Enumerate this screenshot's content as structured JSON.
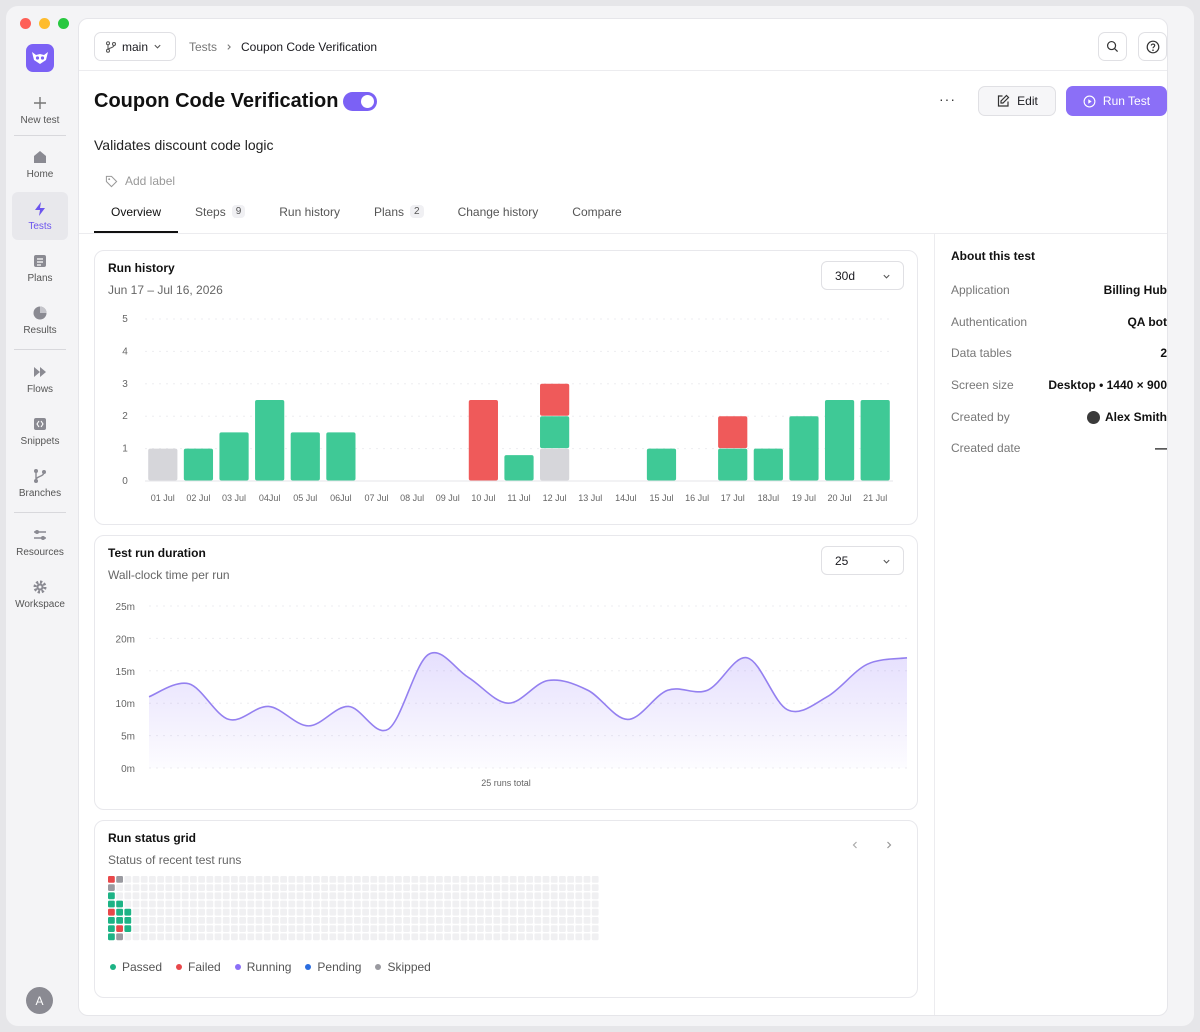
{
  "app": {
    "user_initial": "A"
  },
  "sidebar": {
    "new_test": "New test",
    "items": [
      {
        "label": "Home",
        "icon": "home-icon"
      },
      {
        "label": "Tests",
        "icon": "bolt-icon",
        "active": true
      },
      {
        "label": "Plans",
        "icon": "plans-icon"
      },
      {
        "label": "Results",
        "icon": "results-icon"
      },
      {
        "label": "Flows",
        "icon": "flows-icon"
      },
      {
        "label": "Snippets",
        "icon": "snippets-icon"
      },
      {
        "label": "Branches",
        "icon": "branch-icon"
      },
      {
        "label": "Resources",
        "icon": "resources-icon"
      },
      {
        "label": "Workspace",
        "icon": "gear-icon"
      }
    ]
  },
  "topbar": {
    "branch": "main",
    "crumb_parent": "Tests",
    "crumb_current": "Coupon Code Verification"
  },
  "test": {
    "title": "Coupon Code Verification",
    "enabled": true,
    "description": "Validates discount code logic",
    "add_label": "Add label",
    "more": "···",
    "edit": "Edit",
    "run": "Run Test"
  },
  "tabs": [
    {
      "label": "Overview",
      "count": ""
    },
    {
      "label": "Steps",
      "count": "9"
    },
    {
      "label": "Run history",
      "count": ""
    },
    {
      "label": "Plans",
      "count": "2"
    },
    {
      "label": "Change history",
      "count": ""
    },
    {
      "label": "Compare",
      "count": ""
    }
  ],
  "run_history": {
    "title": "Run history",
    "range": "Jun 17 – Jul 16, 2026",
    "period": "30d"
  },
  "duration": {
    "title": "Test run duration",
    "subtitle": "Wall-clock time per run",
    "count": "25",
    "footer": "25 runs total"
  },
  "grid": {
    "title": "Run status grid",
    "subtitle": "Status of recent test runs"
  },
  "legend": [
    {
      "label": "Passed",
      "color": "#1db385"
    },
    {
      "label": "Failed",
      "color": "#e8474a"
    },
    {
      "label": "Running",
      "color": "#8b6ff7"
    },
    {
      "label": "Pending",
      "color": "#2b6de0"
    },
    {
      "label": "Skipped",
      "color": "#9a9aa0"
    }
  ],
  "about": {
    "title": "About this test",
    "rows": [
      {
        "k": "Application",
        "v": "Billing Hub"
      },
      {
        "k": "Authentication",
        "v": "QA bot"
      },
      {
        "k": "Data tables",
        "v": "2"
      },
      {
        "k": "Screen size",
        "v": "Desktop • 1440 × 900"
      },
      {
        "k": "Created by",
        "v": "Alex Smith"
      },
      {
        "k": "Created date",
        "v": "—"
      }
    ]
  },
  "chart_data": [
    {
      "type": "bar",
      "title": "Run history",
      "ylim": [
        0,
        5
      ],
      "yticks": [
        0,
        1,
        2,
        3,
        4,
        5
      ],
      "categories": [
        "01 Jul",
        "02 Jul",
        "03 Jul",
        "04Jul",
        "05 Jul",
        "06Jul",
        "07 Jul",
        "08 Jul",
        "09 Jul",
        "10 Jul",
        "11 Jul",
        "12 Jul",
        "13 Jul",
        "14Jul",
        "15 Jul",
        "16 Jul",
        "17 Jul",
        "18Jul",
        "19 Jul",
        "20 Jul",
        "21 Jul"
      ],
      "series": [
        {
          "name": "Skipped",
          "color": "#d6d6da",
          "values": [
            1,
            0,
            0,
            0,
            0,
            0,
            0,
            0,
            0,
            0,
            0,
            1,
            0,
            0,
            0,
            0,
            0,
            0,
            0,
            0,
            0
          ]
        },
        {
          "name": "Passed",
          "color": "#3fc996",
          "values": [
            0,
            1,
            1.5,
            2.5,
            1.5,
            1.5,
            0,
            0,
            0,
            0,
            0.8,
            1,
            0,
            0,
            1,
            0,
            1,
            1,
            2,
            2.5,
            2.5
          ]
        },
        {
          "name": "Failed",
          "color": "#ef5a5a",
          "values": [
            0,
            0,
            0,
            0,
            0,
            0,
            0,
            0,
            0,
            2.5,
            0,
            1,
            0,
            0,
            0,
            0,
            1,
            0,
            0,
            0,
            0
          ]
        }
      ]
    },
    {
      "type": "area",
      "title": "Test run duration",
      "ylim": [
        0,
        25
      ],
      "yticks": [
        "0m",
        "5m",
        "10m",
        "15m",
        "20m",
        "25m"
      ],
      "values": [
        11,
        13,
        7.5,
        9.5,
        6.5,
        9.5,
        6,
        17.5,
        14,
        10,
        13.5,
        12,
        7.5,
        12,
        12,
        17,
        9,
        11,
        16,
        17
      ]
    }
  ]
}
